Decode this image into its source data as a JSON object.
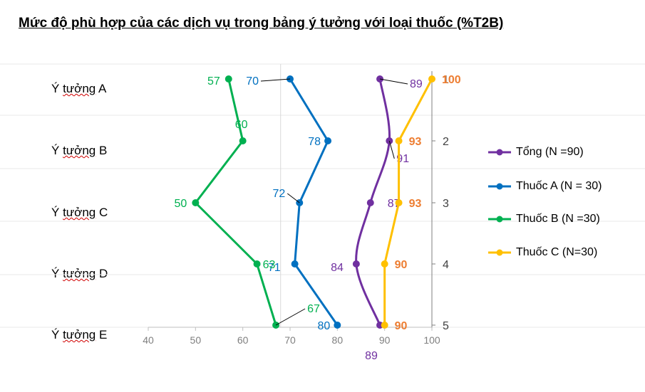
{
  "title": "Mức độ phù hợp của các dịch vụ trong bảng ý tưởng với loại thuốc (%T2B)",
  "chart_data": {
    "type": "line",
    "orientation": "horizontal",
    "categories": [
      "1",
      "2",
      "3",
      "4",
      "5"
    ],
    "row_labels": [
      {
        "prefix": "Ý ",
        "word": "tưởng",
        "suffix": " A"
      },
      {
        "prefix": "Ý ",
        "word": "tưởng",
        "suffix": " B"
      },
      {
        "prefix": "Ý ",
        "word": "tưởng",
        "suffix": " C"
      },
      {
        "prefix": "Ý ",
        "word": "tưởng",
        "suffix": " D"
      },
      {
        "prefix": "Ý ",
        "word": "tưởng",
        "suffix": " E"
      }
    ],
    "xlim": [
      40,
      100
    ],
    "x_ticks": [
      "40",
      "50",
      "60",
      "70",
      "80",
      "90",
      "100"
    ],
    "series": [
      {
        "name": "Tổng (N =90)",
        "color": "#7030a0",
        "values": [
          89,
          91,
          87,
          84,
          89
        ],
        "smooth": true
      },
      {
        "name": "Thuốc A (N = 30)",
        "color": "#0070c0",
        "values": [
          70,
          78,
          72,
          71,
          80
        ],
        "smooth": false
      },
      {
        "name": "Thuốc B (N =30)",
        "color": "#00b050",
        "values": [
          57,
          60,
          50,
          63,
          67
        ],
        "smooth": false
      },
      {
        "name": "Thuốc C (N=30)",
        "color": "#ffc000",
        "label_color": "#ed7d31",
        "values": [
          100,
          93,
          93,
          90,
          90
        ],
        "smooth": false
      }
    ],
    "legend_position": "right",
    "grid": true
  }
}
